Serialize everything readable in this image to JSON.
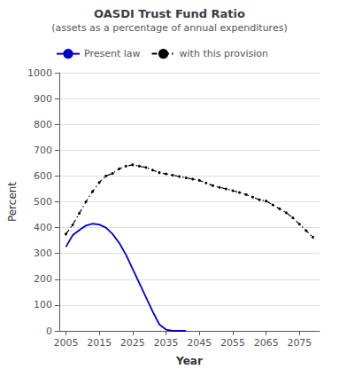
{
  "chart_data": {
    "type": "line",
    "title": "OASDI Trust Fund Ratio",
    "subtitle": "(assets as a percentage of annual expenditures)",
    "xlabel": "Year",
    "ylabel": "Percent",
    "xlim": [
      2003,
      2081
    ],
    "xticks": [
      2005,
      2015,
      2025,
      2035,
      2045,
      2055,
      2065,
      2075
    ],
    "ylim": [
      0,
      1000
    ],
    "yticks": [
      0,
      100,
      200,
      300,
      400,
      500,
      600,
      700,
      800,
      900,
      1000
    ],
    "grid": true,
    "legend": "upper left",
    "series": [
      {
        "name": "Present law",
        "color": "#0000cc",
        "line_style": "solid",
        "x": [
          2005,
          2007,
          2009,
          2011,
          2013,
          2015,
          2017,
          2019,
          2021,
          2023,
          2025,
          2027,
          2029,
          2031,
          2033,
          2035,
          2037,
          2039,
          2041
        ],
        "values": [
          325,
          370,
          390,
          408,
          415,
          412,
          400,
          375,
          340,
          295,
          240,
          185,
          130,
          75,
          25,
          5,
          0,
          0,
          0
        ]
      },
      {
        "name": "with this provision",
        "color": "#000000",
        "line_style": "dashdot",
        "marker": "dot",
        "x": [
          2005,
          2007,
          2009,
          2011,
          2013,
          2015,
          2017,
          2019,
          2021,
          2023,
          2025,
          2027,
          2029,
          2031,
          2033,
          2035,
          2037,
          2039,
          2041,
          2043,
          2045,
          2047,
          2049,
          2051,
          2053,
          2055,
          2057,
          2059,
          2061,
          2063,
          2065,
          2067,
          2069,
          2071,
          2073,
          2075,
          2077,
          2079
        ],
        "values": [
          375,
          410,
          455,
          500,
          540,
          575,
          600,
          610,
          628,
          638,
          643,
          638,
          633,
          623,
          613,
          608,
          603,
          598,
          593,
          588,
          583,
          573,
          563,
          556,
          550,
          543,
          536,
          528,
          518,
          508,
          503,
          488,
          473,
          458,
          438,
          413,
          388,
          363
        ]
      }
    ]
  }
}
